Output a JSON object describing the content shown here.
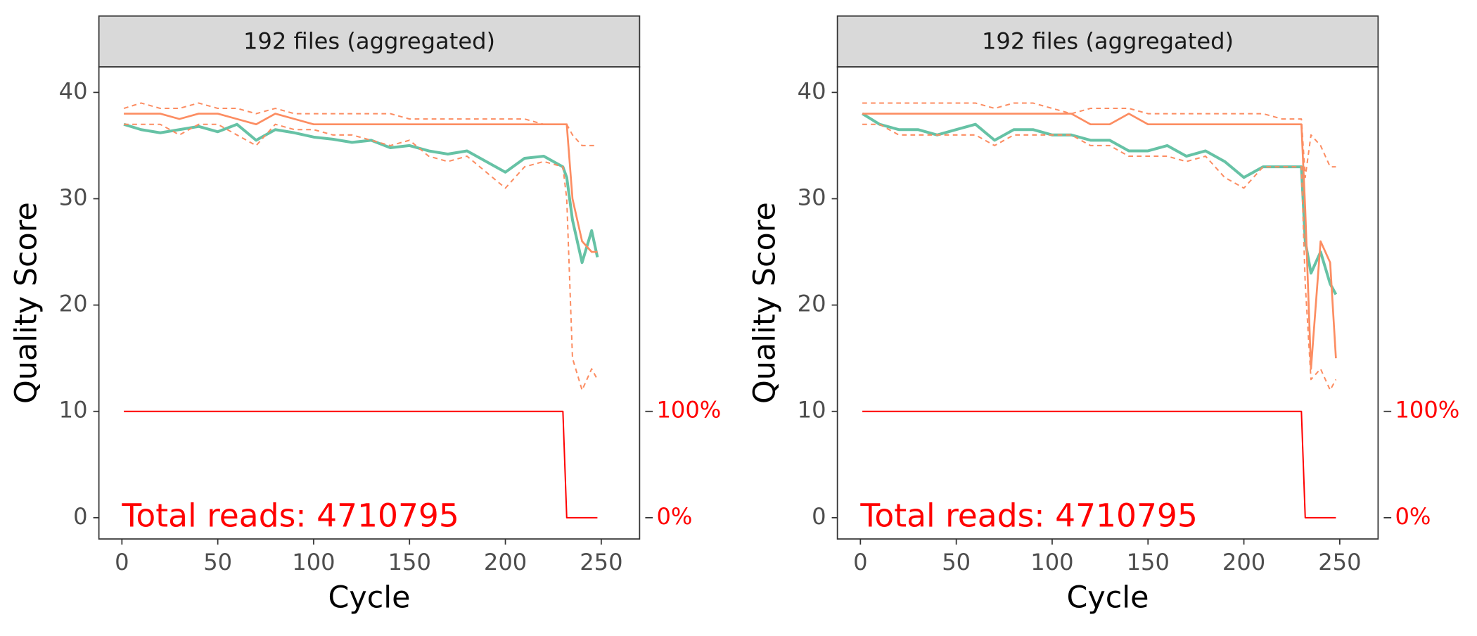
{
  "chart_data": [
    {
      "type": "line",
      "title": "192 files (aggregated)",
      "x_label": "Cycle",
      "y_label": "Quality Score",
      "annotation": "Total reads: 4710795",
      "annotation_color": "#ff0000",
      "xlim": [
        -12,
        270
      ],
      "xticks": [
        0,
        50,
        100,
        150,
        200,
        250
      ],
      "ylim": [
        -2,
        42.4
      ],
      "yticks": [
        0,
        10,
        20,
        30,
        40
      ],
      "y2lim": [
        -20,
        424
      ],
      "y2ticks": [
        {
          "value": 0,
          "label": "0%"
        },
        {
          "value": 100,
          "label": "100%"
        }
      ],
      "y2_color": "#ff0000",
      "x": [
        1,
        10,
        20,
        30,
        40,
        50,
        60,
        70,
        80,
        90,
        100,
        110,
        120,
        130,
        140,
        150,
        160,
        170,
        180,
        190,
        200,
        210,
        220,
        230,
        232,
        235,
        240,
        245,
        248
      ],
      "series": [
        {
          "color": "#66c2a5",
          "width": 3,
          "values": [
            37,
            36.5,
            36.2,
            36.5,
            36.8,
            36.3,
            37,
            35.5,
            36.5,
            36.2,
            35.8,
            35.6,
            35.3,
            35.5,
            34.8,
            35,
            34.5,
            34.2,
            34.5,
            33.5,
            32.5,
            33.8,
            34,
            33,
            32,
            28,
            24,
            27,
            24.5
          ]
        },
        {
          "color": "#fc8d62",
          "width": 2,
          "values": [
            38,
            38,
            38,
            37.5,
            38,
            38,
            37.5,
            37,
            38,
            37.5,
            37,
            37,
            37,
            37,
            37,
            37,
            37,
            37,
            37,
            37,
            37,
            37,
            37,
            37,
            37,
            30,
            26,
            25,
            25
          ]
        },
        {
          "color": "#fc8d62",
          "width": 1.5,
          "dashed": true,
          "values": [
            37,
            37,
            37,
            36,
            37,
            37,
            36,
            35,
            37,
            36.5,
            36.5,
            36,
            36,
            35.5,
            35,
            35.5,
            34,
            33.5,
            34,
            32.5,
            31,
            33,
            33.5,
            33,
            30,
            15,
            12,
            14,
            13
          ]
        },
        {
          "color": "#fc8d62",
          "width": 1.5,
          "dashed": true,
          "values": [
            38.5,
            39,
            38.5,
            38.5,
            39,
            38.5,
            38.5,
            38,
            38.5,
            38,
            38,
            38,
            38,
            38,
            38,
            37.5,
            37.5,
            37.5,
            37.5,
            37.5,
            37.5,
            37.5,
            37,
            37,
            37,
            36,
            35,
            35,
            35
          ]
        },
        {
          "color": "#ff0000",
          "width": 1.5,
          "axis": "y2",
          "x": [
            1,
            230,
            232,
            248
          ],
          "values": [
            100,
            100,
            0,
            0
          ]
        }
      ]
    },
    {
      "type": "line",
      "title": "192 files (aggregated)",
      "x_label": "Cycle",
      "y_label": "Quality Score",
      "annotation": "Total reads: 4710795",
      "annotation_color": "#ff0000",
      "xlim": [
        -12,
        270
      ],
      "xticks": [
        0,
        50,
        100,
        150,
        200,
        250
      ],
      "ylim": [
        -2,
        42.4
      ],
      "yticks": [
        0,
        10,
        20,
        30,
        40
      ],
      "y2lim": [
        -20,
        424
      ],
      "y2ticks": [
        {
          "value": 0,
          "label": "0%"
        },
        {
          "value": 100,
          "label": "100%"
        }
      ],
      "y2_color": "#ff0000",
      "x": [
        1,
        10,
        20,
        30,
        40,
        50,
        60,
        70,
        80,
        90,
        100,
        110,
        120,
        130,
        140,
        150,
        160,
        170,
        180,
        190,
        200,
        210,
        220,
        230,
        232,
        235,
        240,
        245,
        248
      ],
      "series": [
        {
          "color": "#66c2a5",
          "width": 3,
          "values": [
            38,
            37,
            36.5,
            36.5,
            36,
            36.5,
            37,
            35.5,
            36.5,
            36.5,
            36,
            36,
            35.5,
            35.5,
            34.5,
            34.5,
            35,
            34,
            34.5,
            33.5,
            32,
            33,
            33,
            33,
            26,
            23,
            25,
            22,
            21
          ]
        },
        {
          "color": "#fc8d62",
          "width": 2,
          "values": [
            38,
            38,
            38,
            38,
            38,
            38,
            38,
            38,
            38,
            38,
            38,
            38,
            37,
            37,
            38,
            37,
            37,
            37,
            37,
            37,
            37,
            37,
            37,
            37,
            29,
            14,
            26,
            24,
            15
          ]
        },
        {
          "color": "#fc8d62",
          "width": 1.5,
          "dashed": true,
          "values": [
            37,
            37,
            36,
            36,
            36,
            36,
            36,
            35,
            36,
            36,
            36,
            36,
            35,
            35,
            34,
            34,
            34,
            33.5,
            34,
            32,
            31,
            33,
            33,
            33,
            22,
            13,
            14,
            12,
            13
          ]
        },
        {
          "color": "#fc8d62",
          "width": 1.5,
          "dashed": true,
          "values": [
            39,
            39,
            39,
            39,
            39,
            39,
            39,
            38.5,
            39,
            39,
            38.5,
            38,
            38.5,
            38.5,
            38.5,
            38,
            38,
            38,
            38,
            38,
            38,
            38,
            37.5,
            37.5,
            32,
            36,
            35,
            33,
            33
          ]
        },
        {
          "color": "#ff0000",
          "width": 1.5,
          "axis": "y2",
          "x": [
            1,
            230,
            232,
            248
          ],
          "values": [
            100,
            100,
            0,
            0
          ]
        }
      ]
    }
  ]
}
